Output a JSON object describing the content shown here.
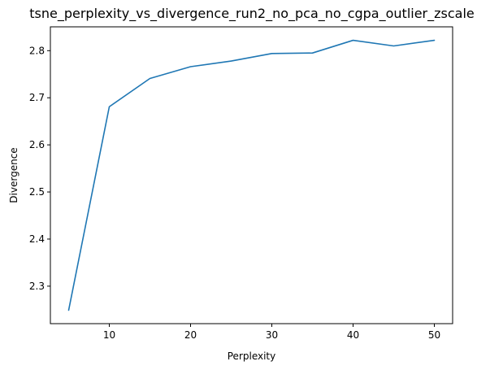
{
  "chart_data": {
    "type": "line",
    "title": "tsne_perplexity_vs_divergence_run2_no_pca_no_cgpa_outlier_zscale",
    "xlabel": "Perplexity",
    "ylabel": "Divergence",
    "x": [
      5,
      10,
      15,
      20,
      25,
      30,
      35,
      40,
      45,
      50
    ],
    "series": [
      {
        "values": [
          2.249,
          2.681,
          2.741,
          2.766,
          2.778,
          2.794,
          2.795,
          2.822,
          2.81,
          2.822
        ],
        "color": "#1f77b4"
      }
    ],
    "xlim": [
      2.75,
      52.25
    ],
    "ylim": [
      2.2204,
      2.8506
    ],
    "xticks": [
      10,
      20,
      30,
      40,
      50
    ],
    "xtick_labels": [
      "10",
      "20",
      "30",
      "40",
      "50"
    ],
    "yticks": [
      2.3,
      2.4,
      2.5,
      2.6,
      2.7,
      2.8
    ],
    "ytick_labels": [
      "2.3",
      "2.4",
      "2.5",
      "2.6",
      "2.7",
      "2.8"
    ],
    "grid": false,
    "legend": "none"
  }
}
